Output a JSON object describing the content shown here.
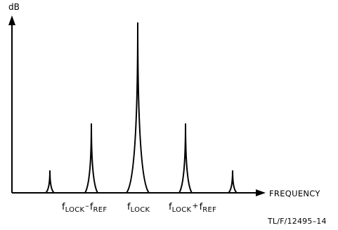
{
  "axes": {
    "y_label": "dB",
    "x_label": "FREQUENCY"
  },
  "ticks": {
    "left": {
      "f": "f",
      "a": "LOCK",
      "op": "–",
      "b": "f",
      "c": "REF"
    },
    "center": {
      "f": "f",
      "a": "LOCK"
    },
    "right": {
      "f": "f",
      "a": "LOCK",
      "op": "+",
      "b": "f",
      "c": "REF"
    }
  },
  "figure_id": "TL/F/12495–14",
  "relative_levels": [
    0.13,
    0.4,
    1.0,
    0.4,
    0.13
  ]
}
